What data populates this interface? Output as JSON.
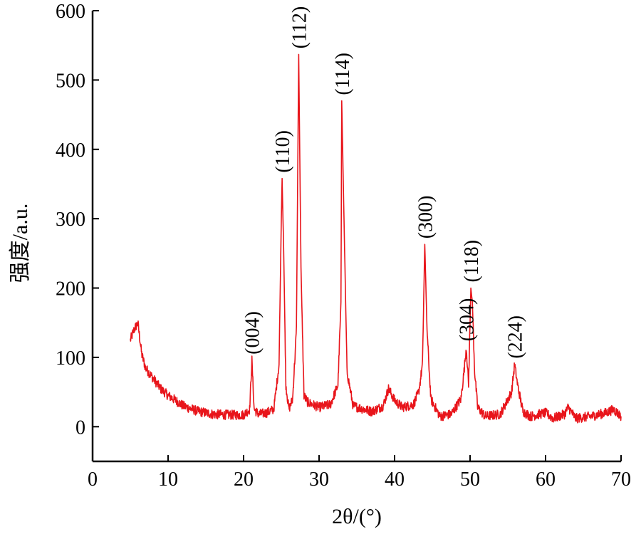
{
  "chart_data": {
    "type": "line",
    "xlabel": "2θ/(°)",
    "ylabel": "强度/a.u.",
    "xlim": [
      0,
      70
    ],
    "ylim": [
      -50,
      600
    ],
    "xticks": [
      "0",
      "10",
      "20",
      "30",
      "40",
      "50",
      "60",
      "70"
    ],
    "yticks": [
      "0",
      "100",
      "200",
      "300",
      "400",
      "500",
      "600"
    ],
    "grid": false,
    "legend": "none",
    "line_color": "#e8151b",
    "series": [
      {
        "x": [
          5.0,
          5.5,
          6.0,
          6.5,
          7.0,
          8.0,
          9.0,
          10.0,
          11.0,
          12.0,
          14.0,
          16.0,
          18.0,
          20.0,
          20.8,
          21.1,
          21.4,
          22.0,
          23.0,
          24.0,
          24.7,
          25.0,
          25.1,
          25.3,
          25.6,
          26.0,
          26.5,
          27.0,
          27.3,
          27.6,
          28.0,
          28.5,
          30.0,
          31.5,
          32.5,
          32.9,
          33.0,
          33.3,
          33.7,
          34.5,
          36.0,
          37.0,
          38.5,
          39.2,
          40.0,
          41.0,
          42.5,
          43.2,
          43.7,
          44.0,
          44.3,
          44.8,
          46.0,
          47.5,
          48.8,
          49.2,
          49.5,
          49.8,
          50.1,
          50.3,
          50.6,
          51.0,
          52.0,
          54.0,
          55.5,
          55.9,
          56.3,
          57.0,
          58.0,
          60.0,
          61.0,
          62.5,
          63.0,
          64.0,
          66.0,
          68.0,
          69.0,
          70.0
        ],
        "y": [
          125,
          140,
          150,
          105,
          85,
          70,
          55,
          45,
          38,
          30,
          22,
          18,
          17,
          17,
          25,
          96,
          25,
          18,
          20,
          25,
          90,
          300,
          358,
          260,
          60,
          25,
          40,
          140,
          537,
          230,
          45,
          35,
          28,
          32,
          60,
          180,
          470,
          300,
          80,
          30,
          25,
          22,
          30,
          55,
          38,
          28,
          32,
          50,
          90,
          263,
          140,
          40,
          15,
          18,
          40,
          80,
          115,
          60,
          200,
          180,
          80,
          28,
          15,
          18,
          50,
          90,
          60,
          22,
          15,
          20,
          12,
          18,
          28,
          12,
          15,
          20,
          25,
          15
        ]
      }
    ],
    "annotations": [
      {
        "text": "(004)",
        "x": 21.1,
        "y": 96
      },
      {
        "text": "(110)",
        "x": 25.1,
        "y": 358
      },
      {
        "text": "(112)",
        "x": 27.3,
        "y": 537
      },
      {
        "text": "(114)",
        "x": 33.0,
        "y": 470
      },
      {
        "text": "(300)",
        "x": 44.0,
        "y": 263
      },
      {
        "text": "(304)",
        "x": 49.5,
        "y": 115
      },
      {
        "text": "(118)",
        "x": 50.1,
        "y": 200
      },
      {
        "text": "(224)",
        "x": 55.9,
        "y": 90
      }
    ]
  }
}
